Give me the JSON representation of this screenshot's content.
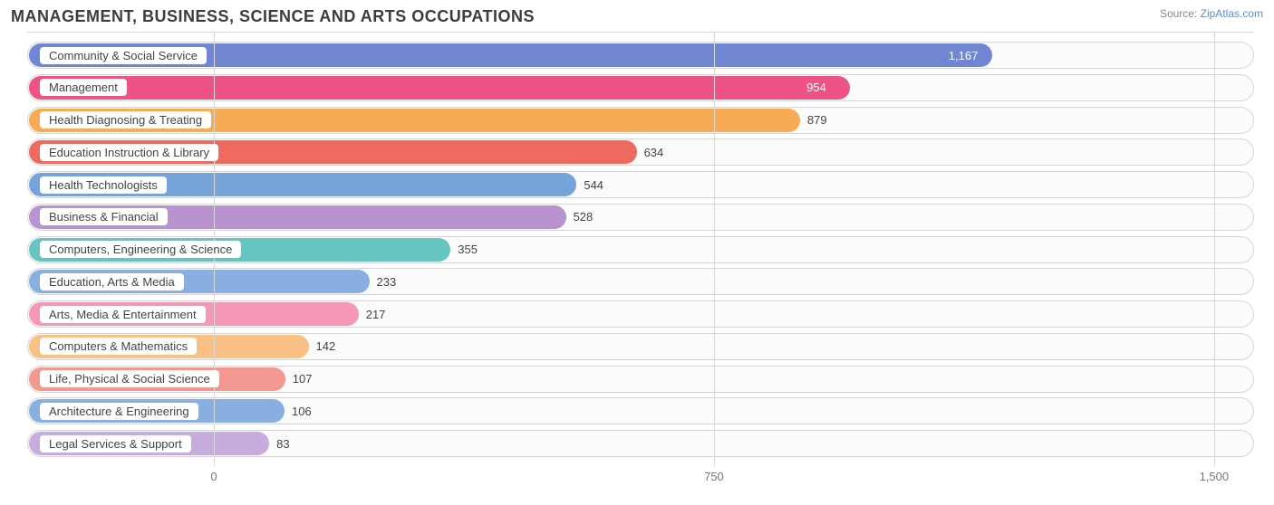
{
  "title": "MANAGEMENT, BUSINESS, SCIENCE AND ARTS OCCUPATIONS",
  "source_prefix": "Source: ",
  "source_name": "ZipAtlas.com",
  "chart": {
    "type": "bar",
    "orientation": "horizontal",
    "background_color": "#ffffff",
    "track_bg": "#fbfbfb",
    "track_border": "#d5d5d5",
    "grid_color": "#d9d9d9",
    "xlim": [
      -280,
      1560
    ],
    "zero_offset": 280,
    "range": 1840,
    "x_ticks": [
      {
        "value": 0,
        "label": "0"
      },
      {
        "value": 750,
        "label": "750"
      },
      {
        "value": 1500,
        "label": "1,500"
      }
    ],
    "title_fontsize": 18,
    "label_fontsize": 13,
    "value_fontsize": 13,
    "tick_fontsize": 13,
    "bars": [
      {
        "label": "Community & Social Service",
        "value": 1167,
        "value_text": "1,167",
        "color": "#7186d2",
        "value_inside": true,
        "value_color": "#ffffff"
      },
      {
        "label": "Management",
        "value": 954,
        "value_text": "954",
        "color": "#ed5384",
        "value_inside": true,
        "value_color": "#ffffff"
      },
      {
        "label": "Health Diagnosing & Treating",
        "value": 879,
        "value_text": "879",
        "color": "#f8ab55",
        "value_inside": false,
        "value_color": "#444444"
      },
      {
        "label": "Education Instruction & Library",
        "value": 634,
        "value_text": "634",
        "color": "#ee6a5e",
        "value_inside": false,
        "value_color": "#444444"
      },
      {
        "label": "Health Technologists",
        "value": 544,
        "value_text": "544",
        "color": "#76a3da",
        "value_inside": false,
        "value_color": "#444444"
      },
      {
        "label": "Business & Financial",
        "value": 528,
        "value_text": "528",
        "color": "#b993d0",
        "value_inside": false,
        "value_color": "#444444"
      },
      {
        "label": "Computers, Engineering & Science",
        "value": 355,
        "value_text": "355",
        "color": "#65c6c1",
        "value_inside": false,
        "value_color": "#444444"
      },
      {
        "label": "Education, Arts & Media",
        "value": 233,
        "value_text": "233",
        "color": "#89aee1",
        "value_inside": false,
        "value_color": "#444444"
      },
      {
        "label": "Arts, Media & Entertainment",
        "value": 217,
        "value_text": "217",
        "color": "#f497b9",
        "value_inside": false,
        "value_color": "#444444"
      },
      {
        "label": "Computers & Mathematics",
        "value": 142,
        "value_text": "142",
        "color": "#f9c185",
        "value_inside": false,
        "value_color": "#444444"
      },
      {
        "label": "Life, Physical & Social Science",
        "value": 107,
        "value_text": "107",
        "color": "#f39890",
        "value_inside": false,
        "value_color": "#444444"
      },
      {
        "label": "Architecture & Engineering",
        "value": 106,
        "value_text": "106",
        "color": "#89aee1",
        "value_inside": false,
        "value_color": "#444444"
      },
      {
        "label": "Legal Services & Support",
        "value": 83,
        "value_text": "83",
        "color": "#c7adde",
        "value_inside": false,
        "value_color": "#444444"
      }
    ]
  }
}
